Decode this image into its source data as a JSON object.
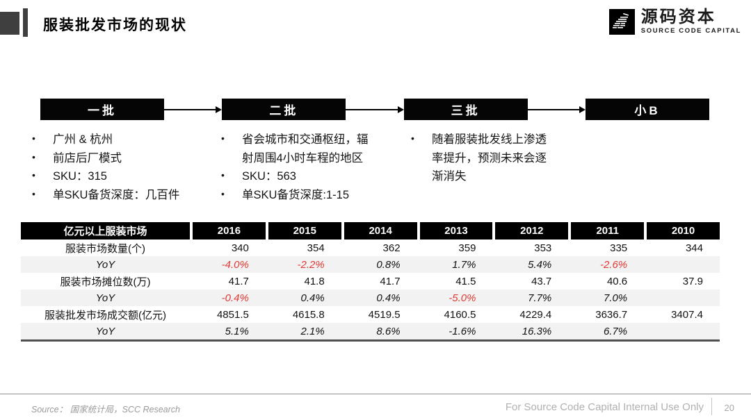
{
  "page": {
    "title": "服装批发市场的现状",
    "logo": {
      "cn": "源码资本",
      "en": "SOURCE CODE CAPITAL"
    },
    "colors": {
      "marker_gray": "#3f3f3f",
      "box_black": "#050505"
    }
  },
  "flow": {
    "stages": [
      {
        "label": "一批",
        "bullets": [
          "广州 & 杭州",
          "前店后厂模式",
          "SKU：315",
          "单SKU备货深度：几百件"
        ]
      },
      {
        "label": "二批",
        "bullets": [
          "省会城市和交通枢纽，辐射周围4小时车程的地区",
          "SKU：563",
          "单SKU备货深度:1-15"
        ]
      },
      {
        "label": "三批",
        "bullets": [
          "随着服装批发线上渗透率提升，预测未来会逐渐消失"
        ]
      },
      {
        "label": "小B",
        "bullets": []
      }
    ]
  },
  "chart_data": {
    "type": "table",
    "title": "亿元以上服装市场",
    "columns": [
      "2016",
      "2015",
      "2014",
      "2013",
      "2012",
      "2011",
      "2010"
    ],
    "rows": [
      {
        "label": "服装市场数量(个)",
        "kind": "data",
        "values": [
          "340",
          "354",
          "362",
          "359",
          "353",
          "335",
          "344"
        ]
      },
      {
        "label": "YoY",
        "kind": "yoy",
        "values": [
          "-4.0%",
          "-2.2%",
          "0.8%",
          "1.7%",
          "5.4%",
          "-2.6%",
          ""
        ],
        "red": [
          true,
          true,
          false,
          false,
          false,
          true,
          false
        ]
      },
      {
        "label": "服装市场摊位数(万)",
        "kind": "data",
        "values": [
          "41.7",
          "41.8",
          "41.7",
          "41.5",
          "43.7",
          "40.6",
          "37.9"
        ]
      },
      {
        "label": "YoY",
        "kind": "yoy",
        "values": [
          "-0.4%",
          "0.4%",
          "0.4%",
          "-5.0%",
          "7.7%",
          "7.0%",
          ""
        ],
        "red": [
          true,
          false,
          false,
          true,
          false,
          false,
          false
        ]
      },
      {
        "label": "服装批发市场成交额(亿元)",
        "kind": "data",
        "values": [
          "4851.5",
          "4615.8",
          "4519.5",
          "4160.5",
          "4229.4",
          "3636.7",
          "3407.4"
        ]
      },
      {
        "label": "YoY",
        "kind": "yoy",
        "values": [
          "5.1%",
          "2.1%",
          "8.6%",
          "-1.6%",
          "16.3%",
          "6.7%",
          ""
        ],
        "red": [
          false,
          false,
          false,
          false,
          false,
          false,
          false
        ]
      }
    ],
    "colors": {
      "negative_red": "#e03a34",
      "stripe": "#f2f2f2",
      "header_bg": "#000000",
      "header_fg": "#ffffff"
    },
    "layout": {
      "grid": false,
      "stripe_rows": "yoy"
    }
  },
  "footer": {
    "source_label": "Source：",
    "source_text": "国家统计局，SCC Research",
    "notice": "For Source Code Capital Internal Use Only",
    "page_number": "20"
  }
}
